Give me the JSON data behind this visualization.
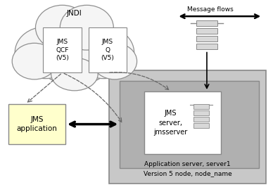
{
  "bg_color": "#ffffff",
  "cloud_label": "JNDI",
  "jms_qcf_label": "JMS\nQCF\n(V5)",
  "jms_q_label": "JMS\nQ\n(V5)",
  "jms_app_label": "JMS\napplication",
  "jms_server_label": "JMS\nserver,\njmsserver",
  "outer_label1": "Application server, server1",
  "outer_label2": "Version 5 node, node_name",
  "msg_flows_label": "Message flows",
  "outer_node_color": "#c8c8c8",
  "inner_server_color": "#b0b0b0",
  "jms_app_color": "#ffffcc",
  "jms_server_bg": "#ffffff",
  "box_edge_color": "#888888",
  "white": "#ffffff",
  "black": "#000000",
  "gray": "#888888",
  "cloud_fill": "#f5f5f5",
  "cloud_edge": "#909090"
}
